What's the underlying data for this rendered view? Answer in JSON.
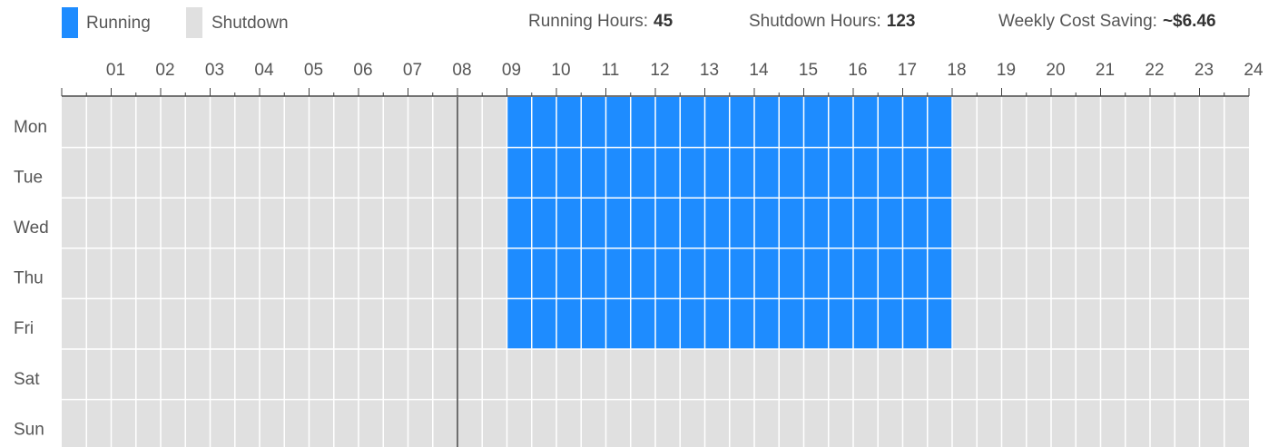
{
  "legend": {
    "running": "Running",
    "shutdown": "Shutdown",
    "running_color": "#1e8cff",
    "shutdown_color": "#e0e0e0"
  },
  "stats": [
    {
      "label": "Running Hours:",
      "value": 45
    },
    {
      "label": "Shutdown Hours:",
      "value": 123
    },
    {
      "label": "Weekly Cost Saving:",
      "value": "~$6.46"
    }
  ],
  "hours": [
    "01",
    "02",
    "03",
    "04",
    "05",
    "06",
    "07",
    "08",
    "09",
    "10",
    "11",
    "12",
    "13",
    "14",
    "15",
    "16",
    "17",
    "18",
    "19",
    "20",
    "21",
    "22",
    "23",
    "24"
  ],
  "marker_hour": 8,
  "days": [
    {
      "label": "Mon",
      "running": [
        9,
        18
      ]
    },
    {
      "label": "Tue",
      "running": [
        9,
        18
      ]
    },
    {
      "label": "Wed",
      "running": [
        9,
        18
      ]
    },
    {
      "label": "Thu",
      "running": [
        9,
        18
      ]
    },
    {
      "label": "Fri",
      "running": [
        9,
        18
      ]
    },
    {
      "label": "Sat",
      "running": null
    },
    {
      "label": "Sun",
      "running": null
    }
  ]
}
